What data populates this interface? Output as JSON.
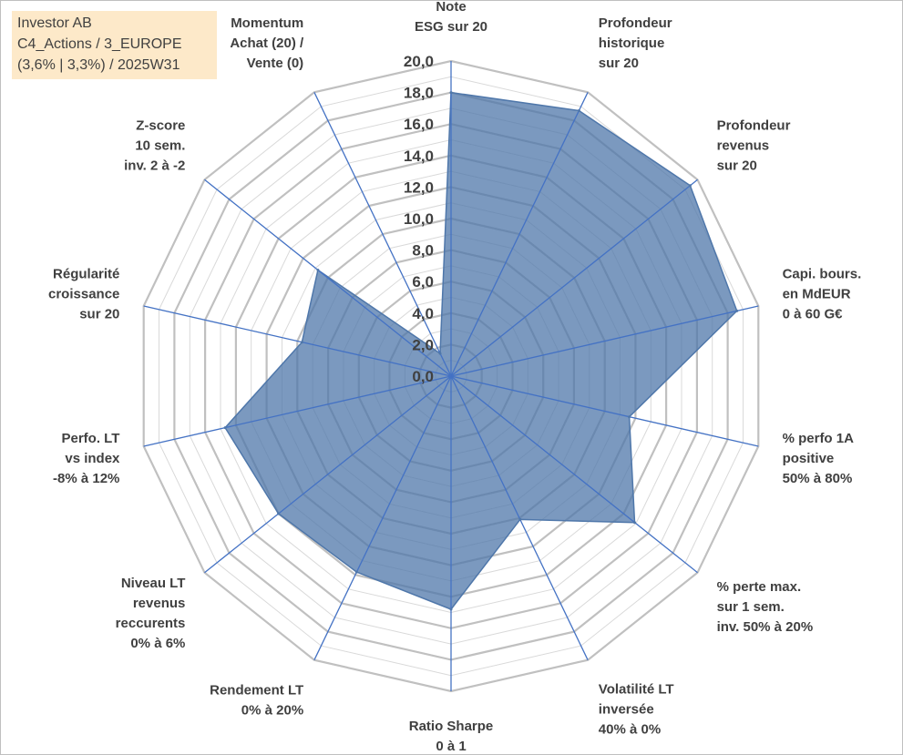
{
  "info_box": {
    "line1": "Investor AB",
    "line2": "C4_Actions / 3_EUROPE",
    "line3": "(3,6% | 3,3%) / 2025W31"
  },
  "colors": {
    "fill": "#4f77aa",
    "fill_opacity": 0.75,
    "spoke": "#4472c4",
    "grid_major": "#c0c0c0",
    "grid_minor": "#d9d9d9",
    "info_bg": "#fde9c9",
    "text": "#404040"
  },
  "chart_data": {
    "type": "radar",
    "title": "",
    "rmin": 0,
    "rmax": 20,
    "major_step": 2,
    "minor_step": 1,
    "tick_labels": [
      "0,0",
      "2,0",
      "4,0",
      "6,0",
      "8,0",
      "10,0",
      "12,0",
      "14,0",
      "16,0",
      "18,0",
      "20,0"
    ],
    "axes": [
      {
        "label": [
          "Note",
          "ESG sur 20"
        ],
        "value": 18.0
      },
      {
        "label": [
          "Profondeur",
          "historique",
          "sur 20"
        ],
        "value": 18.7
      },
      {
        "label": [
          "Profondeur",
          "revenus",
          "sur 20"
        ],
        "value": 19.4
      },
      {
        "label": [
          "Capi. bours.",
          "en MdEUR",
          "0 à 60 G€"
        ],
        "value": 18.6
      },
      {
        "label": [
          "% perfo 1A",
          "positive",
          "50% à 80%"
        ],
        "value": 11.6
      },
      {
        "label": [
          "% perte max.",
          "sur 1 sem.",
          "inv. 50% à 20%"
        ],
        "value": 14.9
      },
      {
        "label": [
          "Volatilité LT",
          "inversée",
          "40% à 0%"
        ],
        "value": 10.1
      },
      {
        "label": [
          "Ratio Sharpe",
          "0 à 1"
        ],
        "value": 14.8
      },
      {
        "label": [
          "Rendement LT",
          "0% à 20%"
        ],
        "value": 13.8
      },
      {
        "label": [
          "Niveau LT",
          "revenus",
          "reccurents",
          "0% à 6%"
        ],
        "value": 14.0
      },
      {
        "label": [
          "Perfo. LT",
          "vs index",
          "-8% à 12%"
        ],
        "value": 14.7
      },
      {
        "label": [
          "Régularité",
          "croissance",
          "sur 20"
        ],
        "value": 9.7
      },
      {
        "label": [
          "Z-score",
          "10 sem.",
          "inv. 2 à -2"
        ],
        "value": 10.8
      },
      {
        "label": [
          "Momentum",
          "Achat (20) /",
          "Vente (0)"
        ],
        "value": 1.6
      }
    ]
  }
}
